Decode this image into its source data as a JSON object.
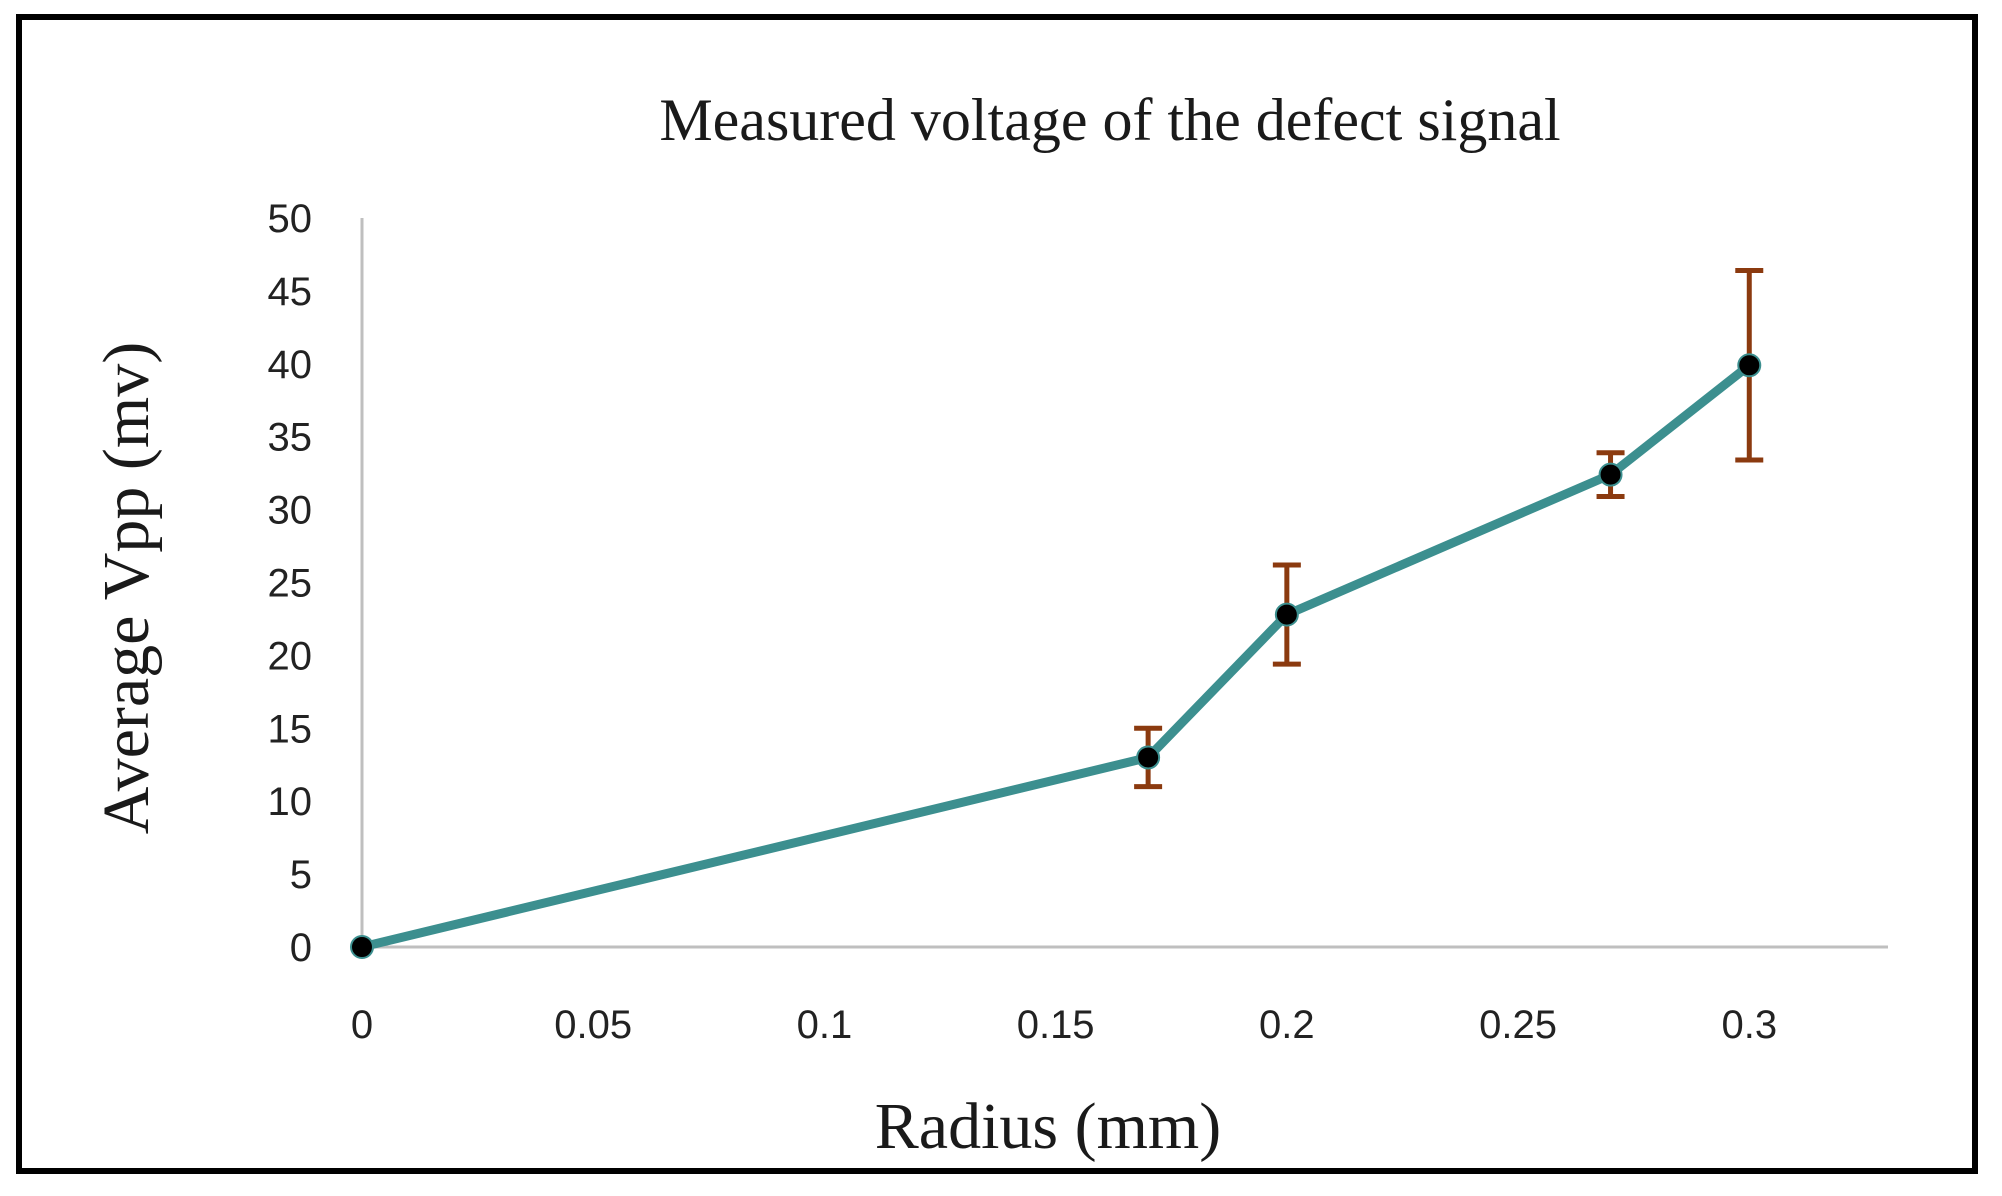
{
  "chart_data": {
    "type": "line",
    "title": "Measured voltage of the defect signal",
    "xlabel": "Radius (mm)",
    "ylabel": "Average Vpp (mv)",
    "xlim": [
      0,
      0.33
    ],
    "ylim": [
      0,
      50
    ],
    "x_ticks": [
      "0",
      "0.05",
      "0.1",
      "0.15",
      "0.2",
      "0.25",
      "0.3"
    ],
    "y_ticks": [
      "0",
      "5",
      "10",
      "15",
      "20",
      "25",
      "30",
      "35",
      "40",
      "45",
      "50"
    ],
    "grid": false,
    "legend": "none",
    "series": [
      {
        "name": "Average Vpp",
        "x": [
          0,
          0.17,
          0.2,
          0.27,
          0.3
        ],
        "y": [
          0,
          13,
          22.8,
          32.4,
          39.9
        ],
        "error_low": [
          0,
          2,
          3.4,
          1.5,
          6.5
        ],
        "error_high": [
          0,
          2,
          3.4,
          1.5,
          6.5
        ]
      }
    ],
    "colors": {
      "line": "#3c8f8f",
      "marker": "#000000",
      "error_bar": "#8b3a0f",
      "axis": "#bfbfbf"
    }
  }
}
